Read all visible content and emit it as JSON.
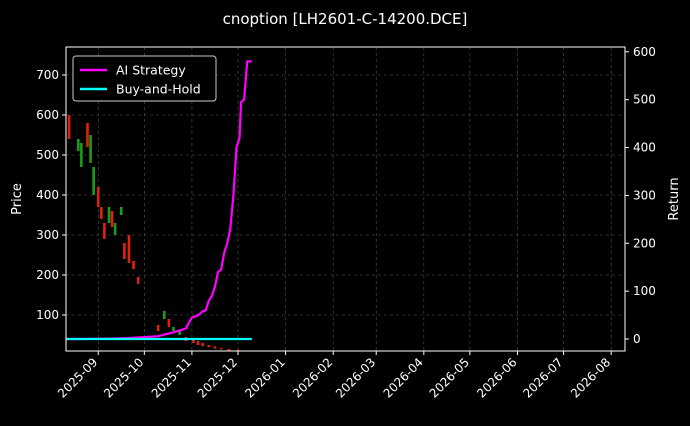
{
  "chart_data": {
    "type": "candlestick+line",
    "title": "cnoption [LH2601-C-14200.DCE]",
    "xlabel": "",
    "ylabel_left": "Price",
    "ylabel_right": "Return",
    "grid": true,
    "legend_position": "top-left",
    "xlim": [
      "2025-08-11",
      "2026-08-10"
    ],
    "ylim_left": [
      10,
      770
    ],
    "ylim_right": [
      -25,
      610
    ],
    "x_ticks": [
      "2025-09",
      "2025-10",
      "2025-11",
      "2025-12",
      "2026-01",
      "2026-02",
      "2026-03",
      "2026-04",
      "2026-05",
      "2026-06",
      "2026-07",
      "2026-08"
    ],
    "y_ticks_left": [
      100,
      200,
      300,
      400,
      500,
      600,
      700
    ],
    "y_ticks_right": [
      0,
      100,
      200,
      300,
      400,
      500,
      600
    ],
    "series": [
      {
        "name": "AI Strategy",
        "color": "#ff00ff",
        "axis": "right",
        "x": [
          "2025-08-11",
          "2025-08-20",
          "2025-09-01",
          "2025-09-10",
          "2025-09-20",
          "2025-10-01",
          "2025-10-10",
          "2025-10-15",
          "2025-10-20",
          "2025-10-24",
          "2025-10-28",
          "2025-11-01",
          "2025-11-04",
          "2025-11-06",
          "2025-11-08",
          "2025-11-10",
          "2025-11-12",
          "2025-11-14",
          "2025-11-16",
          "2025-11-18",
          "2025-11-20",
          "2025-11-22",
          "2025-11-24",
          "2025-11-26",
          "2025-11-28",
          "2025-11-30",
          "2025-12-02",
          "2025-12-03",
          "2025-12-05",
          "2025-12-07",
          "2025-12-10"
        ],
        "values": [
          0,
          0,
          0.5,
          1,
          2,
          4,
          6,
          10,
          14,
          18,
          22,
          45,
          48,
          52,
          58,
          60,
          80,
          90,
          110,
          140,
          145,
          180,
          200,
          230,
          300,
          400,
          420,
          495,
          500,
          580,
          580
        ]
      },
      {
        "name": "Buy-and-Hold",
        "color": "#00ffff",
        "axis": "right",
        "x": [
          "2025-08-11",
          "2025-12-10"
        ],
        "values": [
          0,
          0
        ]
      }
    ],
    "candles": {
      "axis": "left",
      "up_color": "#1a9c1a",
      "down_color": "#e0220a",
      "items": [
        {
          "x": "2025-08-13",
          "o": 600,
          "c": 540
        },
        {
          "x": "2025-08-19",
          "o": 510,
          "c": 540
        },
        {
          "x": "2025-08-21",
          "o": 470,
          "c": 530
        },
        {
          "x": "2025-08-25",
          "o": 580,
          "c": 520
        },
        {
          "x": "2025-08-27",
          "o": 480,
          "c": 550
        },
        {
          "x": "2025-08-29",
          "o": 400,
          "c": 470
        },
        {
          "x": "2025-09-01",
          "o": 420,
          "c": 370
        },
        {
          "x": "2025-09-03",
          "o": 370,
          "c": 340
        },
        {
          "x": "2025-09-05",
          "o": 330,
          "c": 290
        },
        {
          "x": "2025-09-08",
          "o": 330,
          "c": 370
        },
        {
          "x": "2025-09-10",
          "o": 360,
          "c": 320
        },
        {
          "x": "2025-09-12",
          "o": 300,
          "c": 330
        },
        {
          "x": "2025-09-16",
          "o": 350,
          "c": 370
        },
        {
          "x": "2025-09-18",
          "o": 280,
          "c": 240
        },
        {
          "x": "2025-09-21",
          "o": 300,
          "c": 230
        },
        {
          "x": "2025-09-24",
          "o": 235,
          "c": 215
        },
        {
          "x": "2025-09-27",
          "o": 195,
          "c": 178
        },
        {
          "x": "2025-10-10",
          "o": 75,
          "c": 60
        },
        {
          "x": "2025-10-14",
          "o": 90,
          "c": 110
        },
        {
          "x": "2025-10-17",
          "o": 90,
          "c": 70
        },
        {
          "x": "2025-10-20",
          "o": 60,
          "c": 70
        },
        {
          "x": "2025-10-24",
          "o": 50,
          "c": 60
        },
        {
          "x": "2025-10-28",
          "o": 45,
          "c": 35
        },
        {
          "x": "2025-11-02",
          "o": 40,
          "c": 30
        },
        {
          "x": "2025-11-05",
          "o": 35,
          "c": 25
        },
        {
          "x": "2025-11-08",
          "o": 30,
          "c": 22
        },
        {
          "x": "2025-11-12",
          "o": 25,
          "c": 20
        },
        {
          "x": "2025-11-16",
          "o": 22,
          "c": 16
        },
        {
          "x": "2025-11-20",
          "o": 18,
          "c": 14
        },
        {
          "x": "2025-11-25",
          "o": 15,
          "c": 12
        },
        {
          "x": "2025-12-01",
          "o": 13,
          "c": 11
        }
      ]
    }
  }
}
